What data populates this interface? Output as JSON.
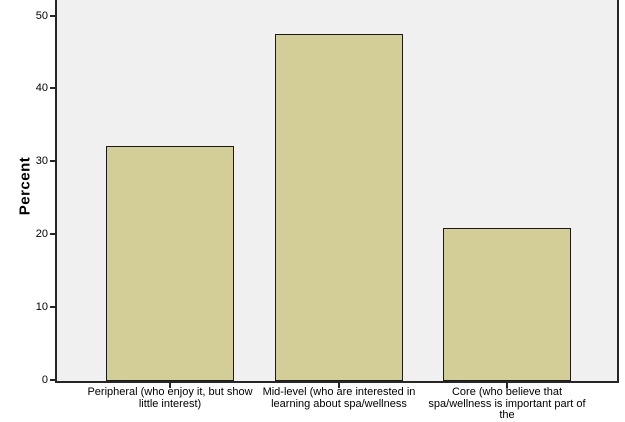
{
  "chart_data": {
    "type": "bar",
    "title": "",
    "xlabel": "",
    "ylabel": "Percent",
    "categories": [
      "Peripheral (who enjoy it, but show little interest)",
      "Mid-level (who are interested in learning about spa/wellness",
      "Core (who believe that spa/wellness is important part of the"
    ],
    "category_lines": [
      [
        "Peripheral (who enjoy it, but show",
        "little interest)"
      ],
      [
        "Mid-level (who are interested in",
        "learning about spa/wellness"
      ],
      [
        "Core (who believe that",
        "spa/wellness is important part of",
        "the"
      ]
    ],
    "values": [
      32.1,
      47.4,
      20.8
    ],
    "yticks": [
      0,
      10,
      20,
      30,
      40,
      50
    ],
    "ylim": [
      0,
      52.1
    ],
    "grid": "off",
    "legend_position": "none",
    "colors": {
      "bar_fill": "#d3ce97",
      "bar_border": "#1a1a1a",
      "plot_background": "#f0f0f0",
      "axis": "#262626",
      "page_background": "#ffffff",
      "text": "#000000"
    }
  }
}
